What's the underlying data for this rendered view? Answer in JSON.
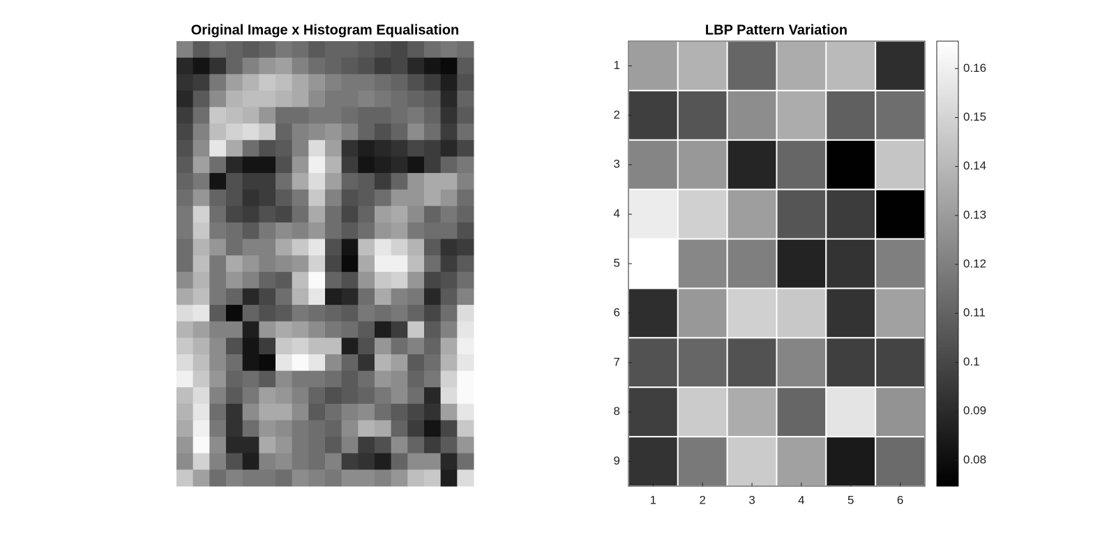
{
  "chart_data": [
    {
      "type": "image",
      "title": "Original Image x Histogram Equalisation",
      "pixels": [
        [
          130,
          90,
          110,
          100,
          90,
          100,
          120,
          110,
          90,
          100,
          100,
          90,
          80,
          70,
          90,
          110,
          120,
          110
        ],
        [
          40,
          20,
          50,
          100,
          130,
          150,
          160,
          130,
          110,
          100,
          90,
          80,
          60,
          70,
          40,
          20,
          10,
          90
        ],
        [
          50,
          60,
          120,
          160,
          180,
          200,
          190,
          170,
          150,
          130,
          120,
          120,
          110,
          100,
          80,
          60,
          30,
          80
        ],
        [
          40,
          90,
          140,
          180,
          190,
          190,
          180,
          170,
          140,
          120,
          120,
          130,
          120,
          110,
          100,
          90,
          40,
          100
        ],
        [
          60,
          110,
          200,
          190,
          180,
          150,
          110,
          110,
          120,
          120,
          110,
          100,
          100,
          110,
          120,
          100,
          50,
          90
        ],
        [
          70,
          130,
          190,
          210,
          220,
          200,
          100,
          130,
          140,
          150,
          130,
          100,
          80,
          100,
          140,
          110,
          60,
          110
        ],
        [
          80,
          140,
          230,
          170,
          110,
          80,
          90,
          130,
          220,
          160,
          50,
          30,
          40,
          50,
          70,
          60,
          40,
          70
        ],
        [
          90,
          160,
          110,
          40,
          20,
          20,
          80,
          150,
          240,
          180,
          60,
          20,
          30,
          40,
          20,
          60,
          100,
          120
        ],
        [
          100,
          120,
          20,
          80,
          60,
          60,
          110,
          170,
          220,
          160,
          100,
          90,
          60,
          100,
          150,
          170,
          170,
          130
        ],
        [
          110,
          150,
          100,
          80,
          50,
          60,
          90,
          120,
          200,
          130,
          80,
          90,
          110,
          150,
          150,
          170,
          150,
          110
        ],
        [
          120,
          210,
          110,
          70,
          60,
          80,
          70,
          110,
          170,
          110,
          70,
          100,
          160,
          170,
          140,
          100,
          120,
          100
        ],
        [
          120,
          200,
          120,
          110,
          90,
          120,
          140,
          130,
          150,
          110,
          90,
          110,
          150,
          160,
          120,
          110,
          110,
          80
        ],
        [
          110,
          180,
          150,
          110,
          130,
          130,
          170,
          200,
          230,
          80,
          20,
          190,
          230,
          210,
          180,
          90,
          50,
          60
        ],
        [
          110,
          190,
          120,
          170,
          150,
          130,
          140,
          150,
          210,
          70,
          10,
          170,
          240,
          240,
          190,
          110,
          60,
          90
        ],
        [
          140,
          180,
          120,
          150,
          130,
          100,
          90,
          190,
          250,
          100,
          80,
          150,
          200,
          210,
          150,
          70,
          80,
          110
        ],
        [
          170,
          190,
          120,
          100,
          40,
          70,
          110,
          180,
          230,
          30,
          40,
          110,
          170,
          130,
          120,
          40,
          90,
          130
        ],
        [
          220,
          230,
          90,
          10,
          100,
          80,
          90,
          120,
          110,
          100,
          90,
          120,
          110,
          120,
          100,
          70,
          110,
          220
        ],
        [
          180,
          160,
          130,
          130,
          30,
          150,
          170,
          160,
          140,
          120,
          110,
          90,
          30,
          60,
          200,
          90,
          130,
          230
        ],
        [
          200,
          180,
          140,
          80,
          20,
          60,
          200,
          210,
          190,
          190,
          30,
          80,
          150,
          110,
          130,
          100,
          170,
          240
        ],
        [
          220,
          190,
          140,
          110,
          20,
          10,
          230,
          250,
          230,
          140,
          100,
          50,
          180,
          160,
          90,
          110,
          180,
          230
        ],
        [
          240,
          200,
          150,
          100,
          110,
          90,
          140,
          120,
          120,
          110,
          90,
          110,
          150,
          140,
          100,
          120,
          210,
          250
        ],
        [
          190,
          220,
          130,
          90,
          120,
          160,
          150,
          130,
          100,
          80,
          90,
          100,
          120,
          140,
          110,
          40,
          220,
          250
        ],
        [
          180,
          230,
          110,
          50,
          140,
          170,
          170,
          140,
          90,
          110,
          130,
          140,
          110,
          90,
          70,
          50,
          160,
          230
        ],
        [
          170,
          240,
          120,
          50,
          110,
          150,
          140,
          120,
          110,
          100,
          140,
          180,
          170,
          100,
          60,
          20,
          70,
          200
        ],
        [
          150,
          250,
          140,
          40,
          40,
          170,
          150,
          120,
          110,
          90,
          130,
          60,
          80,
          140,
          100,
          60,
          90,
          150
        ],
        [
          140,
          210,
          130,
          80,
          30,
          130,
          140,
          120,
          110,
          130,
          60,
          50,
          30,
          100,
          140,
          140,
          40,
          110
        ],
        [
          200,
          160,
          110,
          130,
          120,
          120,
          110,
          140,
          130,
          120,
          140,
          140,
          130,
          150,
          190,
          200,
          30,
          220
        ]
      ]
    },
    {
      "type": "heatmap",
      "title": "LBP Pattern Variation",
      "colormap": "gray",
      "xticks": [
        1,
        2,
        3,
        4,
        5,
        6
      ],
      "yticks": [
        1,
        2,
        3,
        4,
        5,
        6,
        7,
        8,
        9
      ],
      "values": [
        [
          0.131,
          0.138,
          0.111,
          0.136,
          0.141,
          0.091
        ],
        [
          0.097,
          0.105,
          0.125,
          0.136,
          0.109,
          0.114
        ],
        [
          0.122,
          0.129,
          0.088,
          0.111,
          0.075,
          0.145
        ],
        [
          0.159,
          0.149,
          0.131,
          0.105,
          0.096,
          0.075
        ],
        [
          0.166,
          0.123,
          0.12,
          0.087,
          0.093,
          0.12
        ],
        [
          0.091,
          0.129,
          0.149,
          0.146,
          0.093,
          0.132
        ],
        [
          0.104,
          0.111,
          0.104,
          0.122,
          0.097,
          0.099
        ],
        [
          0.097,
          0.147,
          0.136,
          0.111,
          0.156,
          0.127
        ],
        [
          0.093,
          0.118,
          0.147,
          0.132,
          0.084,
          0.113
        ]
      ],
      "clim": [
        0.0747,
        0.1656
      ],
      "cticks": [
        0.08,
        0.09,
        0.1,
        0.11,
        0.12,
        0.13,
        0.14,
        0.15,
        0.16
      ]
    }
  ]
}
